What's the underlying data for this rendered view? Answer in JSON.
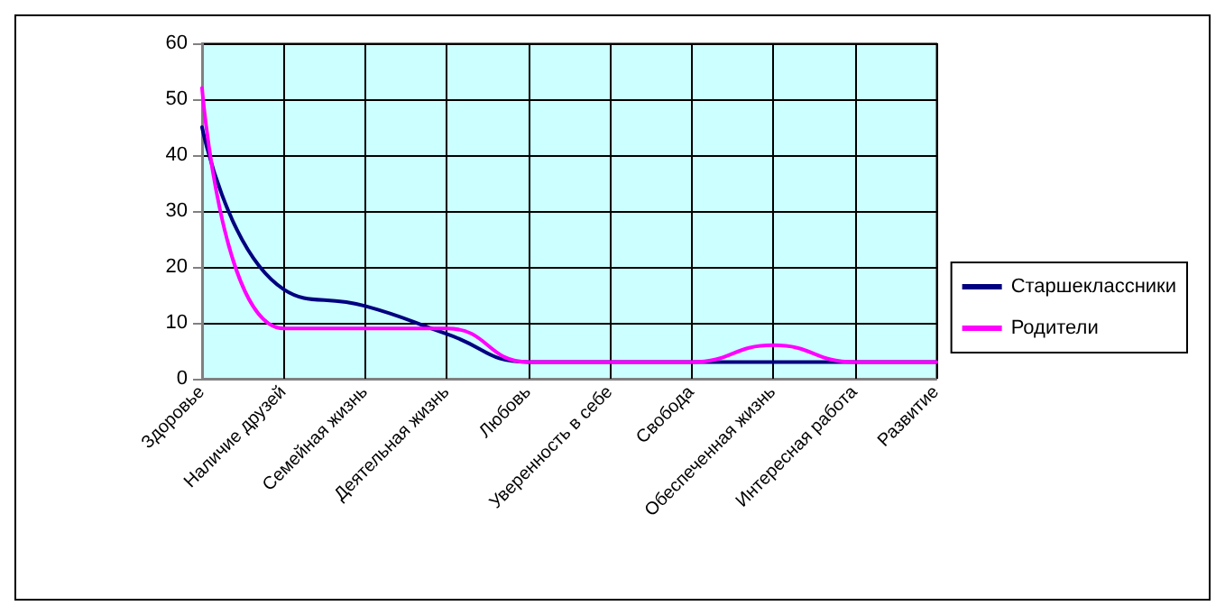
{
  "chart_data": {
    "type": "line",
    "categories": [
      "Здоровье",
      "Наличие друзей",
      "Семейная жизнь",
      "Деятельная жизнь",
      "Любовь",
      "Уверенность в себе",
      "Свобода",
      "Обеспеченная жизнь",
      "Интересная работа",
      "Развитие"
    ],
    "series": [
      {
        "name": "Старшеклассники",
        "color": "#000080",
        "values": [
          45,
          16,
          13,
          8,
          3,
          3,
          3,
          3,
          3,
          3
        ]
      },
      {
        "name": "Родители",
        "color": "#ff00ff",
        "values": [
          52,
          9,
          9,
          9,
          3,
          3,
          3,
          6,
          3,
          3
        ]
      }
    ],
    "ylim": [
      0,
      60
    ],
    "yticks": [
      0,
      10,
      20,
      30,
      40,
      50,
      60
    ],
    "grid": true,
    "legend": "right",
    "marker": "none",
    "line_style": "solid"
  }
}
